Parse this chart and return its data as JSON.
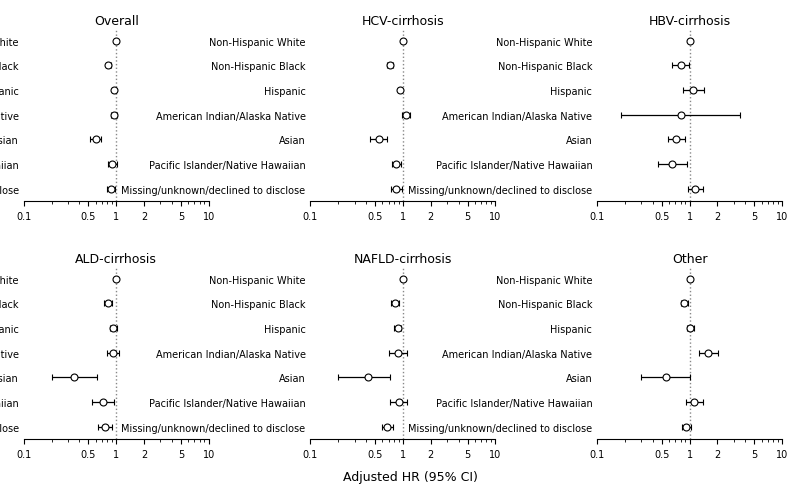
{
  "categories": [
    "Non-Hispanic White",
    "Non-Hispanic Black",
    "Hispanic",
    "American Indian/Alaska Native",
    "Asian",
    "Pacific Islander/Native Hawaiian",
    "Missing/unknown/declined to disclose"
  ],
  "panels": [
    {
      "title": "Overall",
      "hr": [
        1.0,
        0.82,
        0.95,
        0.95,
        0.6,
        0.9,
        0.88
      ],
      "lo": [
        1.0,
        0.78,
        0.91,
        0.88,
        0.52,
        0.82,
        0.8
      ],
      "hi": [
        1.0,
        0.87,
        0.99,
        1.02,
        0.69,
        1.01,
        0.97
      ]
    },
    {
      "title": "HCV-cirrhosis",
      "hr": [
        1.0,
        0.72,
        0.93,
        1.07,
        0.55,
        0.85,
        0.85
      ],
      "lo": [
        1.0,
        0.67,
        0.88,
        0.97,
        0.44,
        0.77,
        0.75
      ],
      "hi": [
        1.0,
        0.78,
        0.98,
        1.18,
        0.68,
        0.95,
        0.97
      ]
    },
    {
      "title": "HBV-cirrhosis",
      "hr": [
        1.0,
        0.8,
        1.1,
        0.8,
        0.72,
        0.65,
        1.15
      ],
      "lo": [
        1.0,
        0.65,
        0.85,
        0.18,
        0.58,
        0.45,
        0.95
      ],
      "hi": [
        1.0,
        0.98,
        1.42,
        3.5,
        0.9,
        0.93,
        1.4
      ]
    },
    {
      "title": "ALD-cirrhosis",
      "hr": [
        1.0,
        0.82,
        0.93,
        0.92,
        0.35,
        0.72,
        0.75
      ],
      "lo": [
        1.0,
        0.74,
        0.86,
        0.79,
        0.2,
        0.55,
        0.63
      ],
      "hi": [
        1.0,
        0.91,
        1.01,
        1.07,
        0.62,
        0.94,
        0.89
      ]
    },
    {
      "title": "NAFLD-cirrhosis",
      "hr": [
        1.0,
        0.82,
        0.88,
        0.88,
        0.42,
        0.9,
        0.68
      ],
      "lo": [
        1.0,
        0.75,
        0.81,
        0.7,
        0.2,
        0.72,
        0.6
      ],
      "hi": [
        1.0,
        0.9,
        0.96,
        1.1,
        0.72,
        1.12,
        0.78
      ]
    },
    {
      "title": "Other",
      "hr": [
        1.0,
        0.88,
        1.02,
        1.6,
        0.55,
        1.12,
        0.92
      ],
      "lo": [
        1.0,
        0.8,
        0.94,
        1.25,
        0.3,
        0.92,
        0.82
      ],
      "hi": [
        1.0,
        0.97,
        1.11,
        2.05,
        1.0,
        1.38,
        1.04
      ]
    }
  ],
  "ref_line": 1.0,
  "xlim": [
    0.1,
    10
  ],
  "xticks": [
    0.1,
    0.5,
    1,
    2,
    5,
    10
  ],
  "xticklabels": [
    "0.1",
    "0.5",
    "1",
    "2",
    "5",
    "10"
  ],
  "xlabel": "Adjusted HR (95% CI)",
  "marker_size": 5,
  "marker_color": "white",
  "marker_edge_color": "black",
  "line_color": "black",
  "ref_line_color": "#888888",
  "fontsize_title": 9,
  "fontsize_labels": 7,
  "fontsize_tick": 7,
  "fontsize_xlabel": 9
}
